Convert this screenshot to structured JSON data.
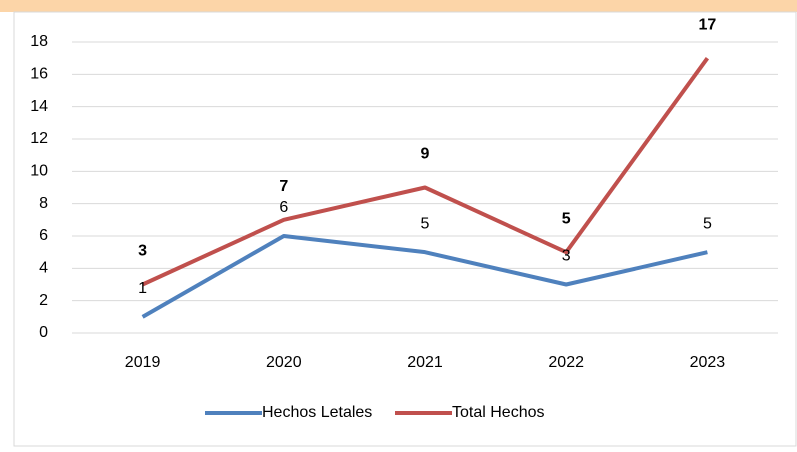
{
  "chart_data": {
    "type": "line",
    "categories": [
      "2019",
      "2020",
      "2021",
      "2022",
      "2023"
    ],
    "series": [
      {
        "name": "Hechos Letales",
        "color": "#4f81bd",
        "values": [
          1,
          6,
          5,
          3,
          5
        ]
      },
      {
        "name": "Total Hechos",
        "color": "#c0504d",
        "values": [
          3,
          7,
          9,
          5,
          17
        ]
      }
    ],
    "ylim": [
      0,
      18
    ],
    "yticks": [
      0,
      2,
      4,
      6,
      8,
      10,
      12,
      14,
      16,
      18
    ],
    "grid": true,
    "legend": "bottom"
  }
}
